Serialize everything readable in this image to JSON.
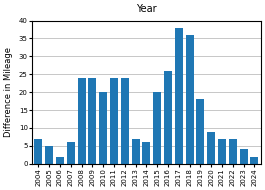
{
  "chart_data": {
    "type": "bar",
    "title": "Year",
    "ylabel": "Difference in Mileage",
    "categories": [
      "2004",
      "2005",
      "2006",
      "2007",
      "2008",
      "2009",
      "2010",
      "2011",
      "2012",
      "2013",
      "2014",
      "2015",
      "2016",
      "2017",
      "2018",
      "2019",
      "2020",
      "2021",
      "2022",
      "2023",
      "2024"
    ],
    "values": [
      7,
      5,
      2,
      6,
      24,
      24,
      20,
      24,
      24,
      7,
      6,
      20,
      26,
      38,
      36,
      18,
      9,
      7,
      7,
      4,
      2
    ],
    "ylim": [
      0,
      40
    ],
    "yticks": [
      0,
      5,
      10,
      15,
      20,
      25,
      30,
      35,
      40
    ],
    "grid": true
  }
}
